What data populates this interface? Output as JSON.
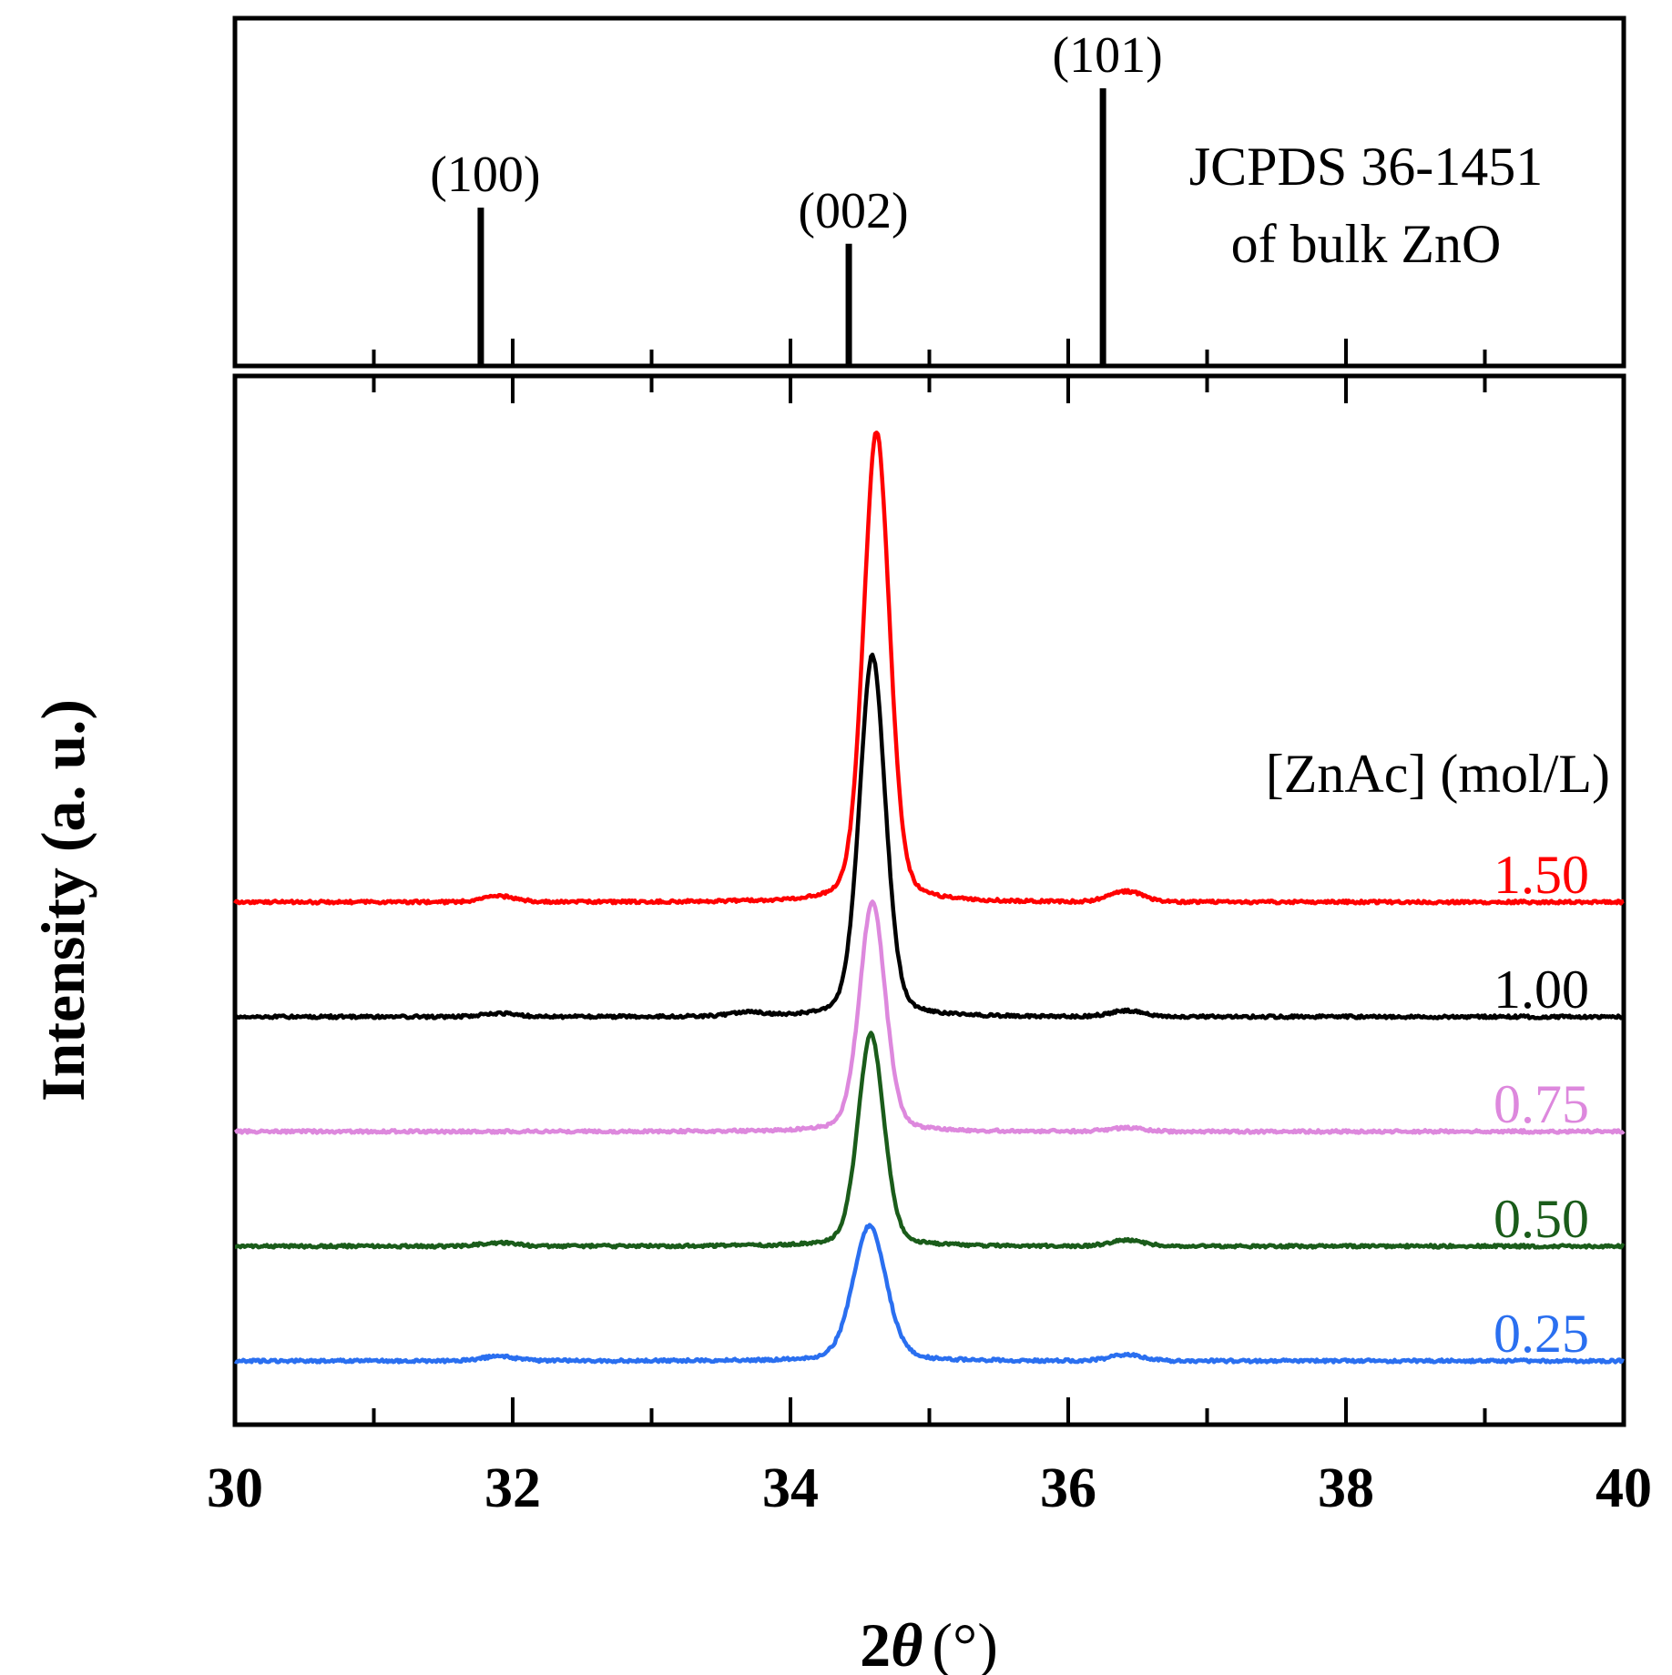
{
  "chart_data": {
    "type": "line",
    "title": "",
    "xlabel": {
      "symbol_prefix": "2",
      "symbol_greek": "θ",
      "unit": "(°)"
    },
    "ylabel": "Intensity (a. u.)",
    "xlim": [
      30,
      40
    ],
    "x_ticks": [
      30,
      32,
      34,
      36,
      38,
      40
    ],
    "x_tick_labels": [
      "30",
      "32",
      "34",
      "36",
      "38",
      "40"
    ],
    "x_minor_ticks": [
      31,
      33,
      35,
      37,
      39
    ],
    "reference_panel": {
      "line1": "JCPDS 36-1451",
      "line2": "of bulk ZnO",
      "lines": [
        {
          "label": "(100)",
          "x": 31.77,
          "intensity": 57
        },
        {
          "label": "(002)",
          "x": 34.42,
          "intensity": 44
        },
        {
          "label": "(101)",
          "x": 36.25,
          "intensity": 100
        }
      ]
    },
    "legend_title": "[ZnAc] (mol/L)",
    "series": [
      {
        "name": "1.50",
        "color": "#ff0000",
        "baseline": 4.0,
        "peak_x": 34.62,
        "peak_height": 4.1,
        "fwhm": 0.22,
        "minor_peaks": [
          {
            "x": 31.9,
            "h": 0.05
          },
          {
            "x": 36.42,
            "h": 0.09
          }
        ]
      },
      {
        "name": "1.00",
        "color": "#000000",
        "baseline": 3.0,
        "peak_x": 34.59,
        "peak_height": 3.15,
        "fwhm": 0.22,
        "minor_peaks": [
          {
            "x": 31.9,
            "h": 0.03
          },
          {
            "x": 33.7,
            "h": 0.03
          },
          {
            "x": 36.42,
            "h": 0.05
          }
        ]
      },
      {
        "name": "0.75",
        "color": "#dd88dd",
        "baseline": 2.0,
        "peak_x": 34.59,
        "peak_height": 2.0,
        "fwhm": 0.22,
        "minor_peaks": [
          {
            "x": 36.42,
            "h": 0.03
          }
        ]
      },
      {
        "name": "0.50",
        "color": "#1a5c1a",
        "baseline": 1.0,
        "peak_x": 34.58,
        "peak_height": 1.85,
        "fwhm": 0.22,
        "minor_peaks": [
          {
            "x": 31.9,
            "h": 0.03
          },
          {
            "x": 36.42,
            "h": 0.05
          }
        ]
      },
      {
        "name": "0.25",
        "color": "#2a6ff0",
        "baseline": 0.0,
        "peak_x": 34.57,
        "peak_height": 1.18,
        "fwhm": 0.28,
        "minor_peaks": [
          {
            "x": 31.9,
            "h": 0.04
          },
          {
            "x": 36.42,
            "h": 0.05
          }
        ]
      }
    ]
  }
}
